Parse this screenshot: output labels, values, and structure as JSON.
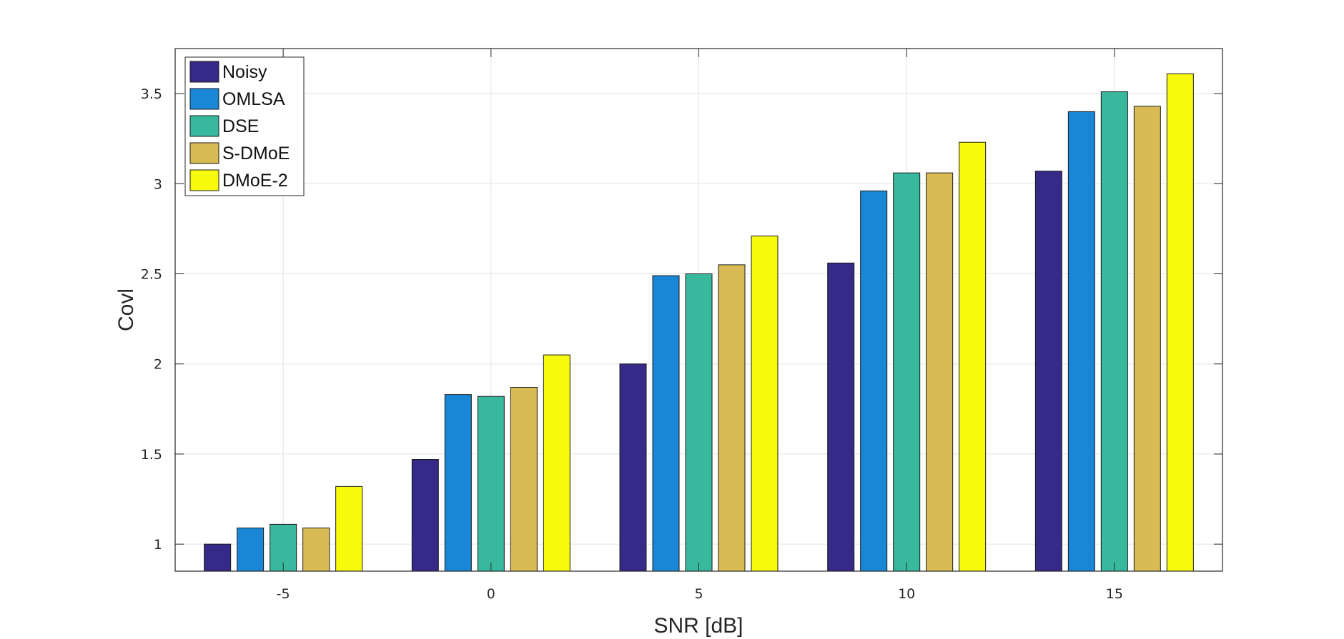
{
  "chart_data": {
    "type": "bar",
    "title": "",
    "xlabel": "SNR [dB]",
    "ylabel": "Covl",
    "categories": [
      "-5",
      "0",
      "5",
      "10",
      "15"
    ],
    "ylim": [
      0.85,
      3.75
    ],
    "yticks": [
      "1",
      "1.5",
      "2",
      "2.5",
      "3",
      "3.5"
    ],
    "grid": true,
    "legend_position": "top-left",
    "series": [
      {
        "name": "Noisy",
        "color": "#352a87",
        "values": [
          1.0,
          1.47,
          2.0,
          2.56,
          3.07
        ]
      },
      {
        "name": "OMLSA",
        "color": "#1a86d6",
        "values": [
          1.09,
          1.83,
          2.49,
          2.96,
          3.4
        ]
      },
      {
        "name": "DSE",
        "color": "#38b99e",
        "values": [
          1.11,
          1.82,
          2.5,
          3.06,
          3.51
        ]
      },
      {
        "name": "S-DMoE",
        "color": "#d9bb55",
        "values": [
          1.09,
          1.87,
          2.55,
          3.06,
          3.43
        ]
      },
      {
        "name": "DMoE-2",
        "color": "#f8fa0d",
        "values": [
          1.32,
          2.05,
          2.71,
          3.23,
          3.61
        ]
      }
    ]
  }
}
